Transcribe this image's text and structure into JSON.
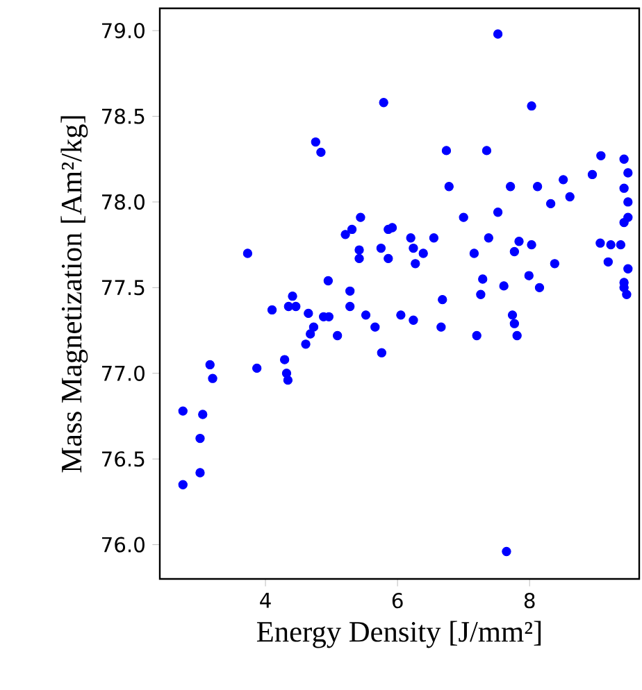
{
  "chart_data": {
    "type": "scatter",
    "xlabel": "Energy Density [J/mm²]",
    "ylabel": "Mass Magnetization [Am²/kg]",
    "xlim": [
      2.4,
      9.66
    ],
    "ylim": [
      75.8,
      79.13
    ],
    "xticks": [
      4,
      6,
      8
    ],
    "yticks": [
      {
        "value": 76.0,
        "label": "76.0"
      },
      {
        "value": 76.5,
        "label": "76.5"
      },
      {
        "value": 77.0,
        "label": "77.0"
      },
      {
        "value": 77.5,
        "label": "77.5"
      },
      {
        "value": 78.0,
        "label": "78.0"
      },
      {
        "value": 78.5,
        "label": "78.5"
      },
      {
        "value": 79.0,
        "label": "79.0"
      }
    ],
    "marker": "circle",
    "grid": false,
    "series": [
      {
        "color": "#0000ff",
        "x": [
          2.75,
          2.75,
          3.05,
          3.01,
          3.01,
          3.16,
          3.2,
          3.87,
          4.1,
          4.29,
          4.32,
          4.34,
          4.41,
          4.35,
          4.46,
          4.65,
          4.73,
          4.68,
          4.61,
          4.88,
          4.96,
          4.95,
          5.09,
          5.28,
          5.28,
          5.52,
          5.66,
          5.76,
          5.79,
          4.76,
          4.84,
          3.73,
          5.44,
          5.31,
          5.21,
          5.42,
          5.42,
          5.75,
          5.86,
          5.86,
          7.52,
          8.03,
          6.74,
          7.35,
          9.08,
          9.43,
          9.49,
          8.95,
          8.51,
          6.78,
          7.71,
          8.12,
          9.43,
          8.32,
          8.61,
          9.49,
          7.0,
          7.52,
          9.49,
          9.43,
          5.92,
          6.2,
          6.24,
          6.39,
          6.27,
          6.55,
          7.38,
          7.16,
          7.84,
          8.03,
          7.77,
          8.38,
          9.07,
          9.23,
          9.38,
          9.19,
          9.49,
          7.29,
          7.61,
          7.99,
          8.15,
          7.26,
          6.68,
          9.43,
          9.43,
          9.47,
          6.05,
          6.24,
          6.66,
          7.2,
          7.74,
          7.77,
          7.81,
          7.65
        ],
        "values": [
          76.78,
          76.35,
          76.76,
          76.62,
          76.42,
          77.05,
          76.97,
          77.03,
          77.37,
          77.08,
          77.0,
          76.96,
          77.45,
          77.39,
          77.39,
          77.35,
          77.27,
          77.23,
          77.17,
          77.33,
          77.33,
          77.54,
          77.22,
          77.48,
          77.39,
          77.34,
          77.27,
          77.12,
          78.58,
          78.35,
          78.29,
          77.7,
          77.91,
          77.84,
          77.81,
          77.72,
          77.67,
          77.73,
          77.84,
          77.67,
          78.98,
          78.56,
          78.3,
          78.3,
          78.27,
          78.25,
          78.17,
          78.16,
          78.13,
          78.09,
          78.09,
          78.09,
          78.08,
          77.99,
          78.03,
          78.0,
          77.91,
          77.94,
          77.91,
          77.88,
          77.85,
          77.79,
          77.73,
          77.7,
          77.64,
          77.79,
          77.79,
          77.7,
          77.77,
          77.75,
          77.71,
          77.64,
          77.76,
          77.75,
          77.75,
          77.65,
          77.61,
          77.55,
          77.51,
          77.57,
          77.5,
          77.46,
          77.43,
          77.53,
          77.5,
          77.46,
          77.34,
          77.31,
          77.27,
          77.22,
          77.34,
          77.29,
          77.22,
          75.96
        ]
      }
    ]
  }
}
